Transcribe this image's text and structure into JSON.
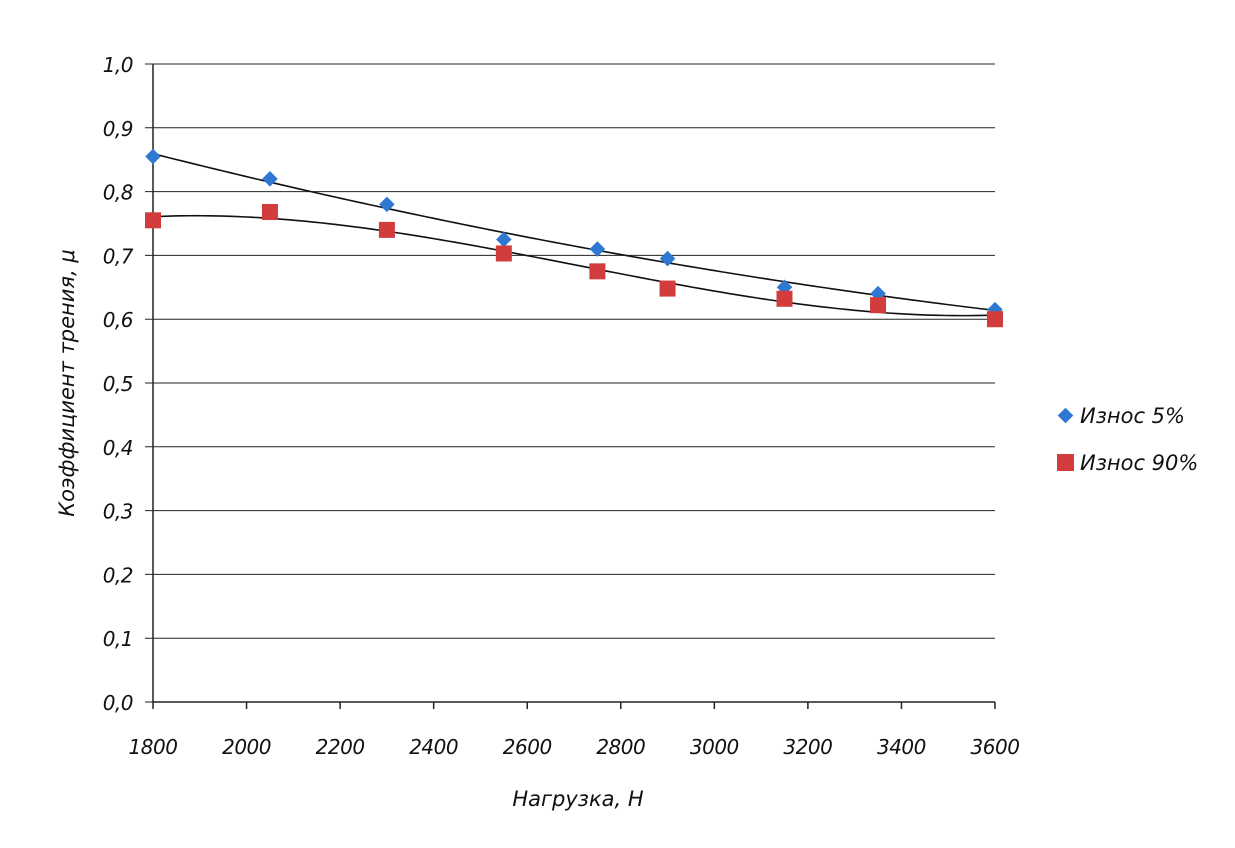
{
  "chart_data": {
    "type": "scatter",
    "xlabel": "Нагрузка, Н",
    "ylabel": "Коэффициент трения, μ",
    "xlim": [
      1800,
      3600
    ],
    "ylim": [
      0.0,
      1.0
    ],
    "x_ticks": [
      "1800",
      "2000",
      "2200",
      "2400",
      "2600",
      "2800",
      "3000",
      "3200",
      "3400",
      "3600"
    ],
    "y_ticks": [
      "0,0",
      "0,1",
      "0,2",
      "0,3",
      "0,4",
      "0,5",
      "0,6",
      "0,7",
      "0,8",
      "0,9",
      "1,0"
    ],
    "grid": "horizontal",
    "legend_position": "right",
    "trendlines": true,
    "series": [
      {
        "name": "Износ 5%",
        "marker": "diamond",
        "color": "#2e78d2",
        "x": [
          1800,
          2050,
          2300,
          2550,
          2750,
          2900,
          3150,
          3350,
          3600
        ],
        "y": [
          0.855,
          0.82,
          0.78,
          0.725,
          0.71,
          0.695,
          0.65,
          0.64,
          0.615
        ]
      },
      {
        "name": "Износ 90%",
        "marker": "square",
        "color": "#d23c3c",
        "x": [
          1800,
          2050,
          2300,
          2550,
          2750,
          2900,
          3150,
          3350,
          3600
        ],
        "y": [
          0.755,
          0.768,
          0.74,
          0.703,
          0.675,
          0.648,
          0.632,
          0.622,
          0.6
        ]
      }
    ]
  }
}
